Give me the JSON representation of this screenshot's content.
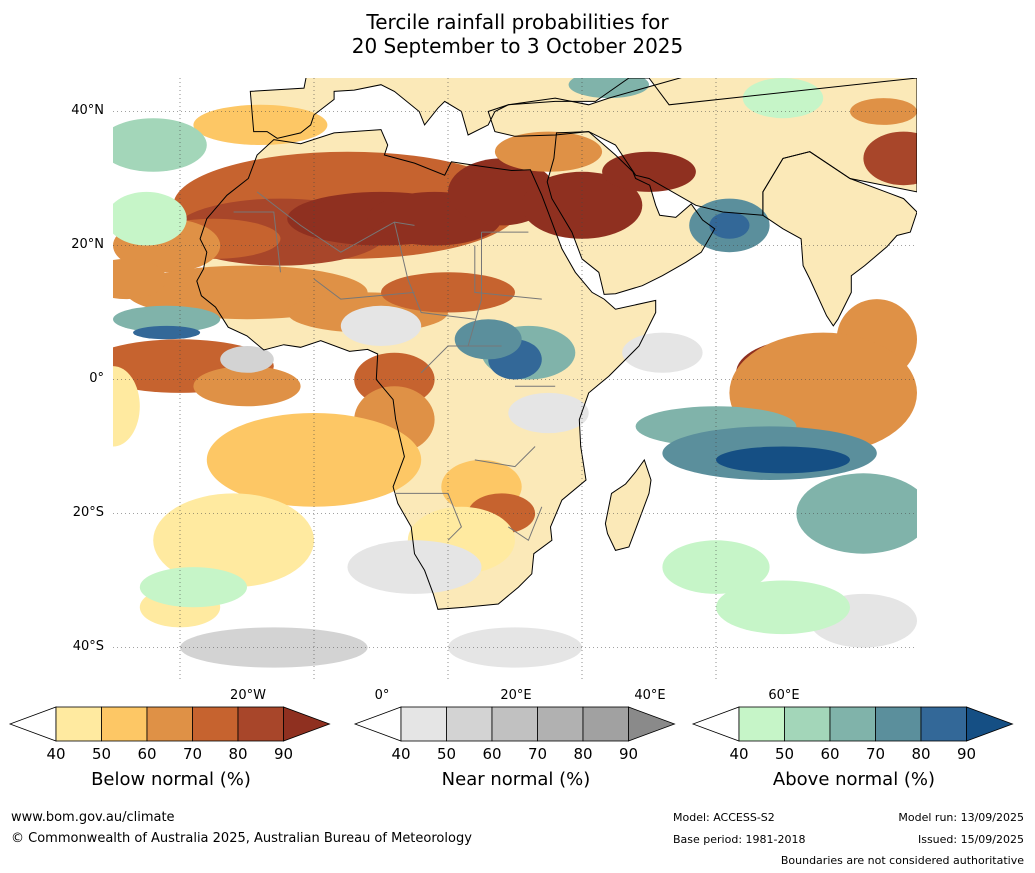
{
  "header": {
    "title_line1": "Tercile rainfall probabilities for",
    "title_line2": "20 September to 3 October 2025"
  },
  "map": {
    "lat_labels": [
      "40°N",
      "20°N",
      "0°",
      "20°S",
      "40°S"
    ],
    "lon_labels": [
      "20°W",
      "0°",
      "20°E",
      "40°E",
      "60°E"
    ],
    "colors": {
      "ocean_base": "#ffffff",
      "land_base": "#fbe9b8",
      "below": [
        "#ffffff",
        "#ffeaa0",
        "#fdc765",
        "#df9146",
        "#c6632f",
        "#a8462a",
        "#8f3020"
      ],
      "near": [
        "#ffffff",
        "#e5e5e5",
        "#d3d3d3",
        "#c1c1c1",
        "#b1b1b1",
        "#a1a1a1",
        "#8a8a8a"
      ],
      "above": [
        "#ffffff",
        "#c6f5c8",
        "#a3d6b9",
        "#80b3aa",
        "#5b8f9c",
        "#336898",
        "#154f84"
      ],
      "coast": "#000000",
      "border": "#777777",
      "grid": "#444444"
    }
  },
  "colorbars": [
    {
      "id": "below",
      "ticks": [
        "40",
        "50",
        "60",
        "70",
        "80",
        "90"
      ],
      "caption": "Below normal (%)"
    },
    {
      "id": "near",
      "ticks": [
        "40",
        "50",
        "60",
        "70",
        "80",
        "90"
      ],
      "caption": "Near normal (%)"
    },
    {
      "id": "above",
      "ticks": [
        "40",
        "50",
        "60",
        "70",
        "80",
        "90"
      ],
      "caption": "Above normal (%)"
    }
  ],
  "footer": {
    "website": "www.bom.gov.au/climate",
    "copyright": "© Commonwealth of Australia 2025, Australian Bureau of Meteorology",
    "model": "Model: ACCESS-S2",
    "base_period": "Base period: 1981-2018",
    "model_run": "Model run: 13/09/2025",
    "issued": "Issued: 15/09/2025",
    "disclaimer": "Boundaries are not considered authoritative"
  }
}
